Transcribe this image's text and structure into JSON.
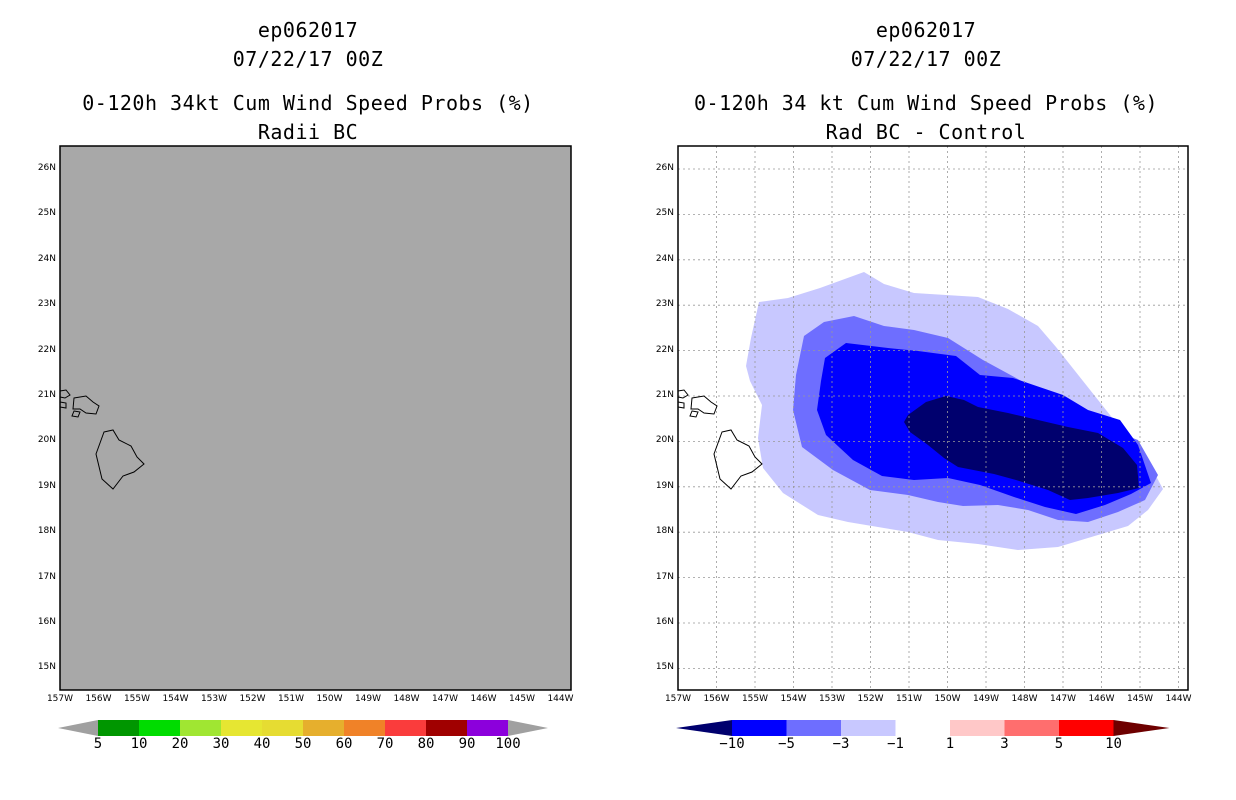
{
  "left_panel": {
    "storm_id": "ep062017",
    "datetime": "07/22/17 00Z",
    "title": "0-120h 34kt Cum Wind Speed Probs (%)",
    "subtitle": "Radii BC",
    "fill_color": "#a8a8a8",
    "colorbar": {
      "labels": [
        "5",
        "10",
        "20",
        "30",
        "40",
        "50",
        "60",
        "70",
        "80",
        "90",
        "100"
      ],
      "colors": [
        "#a0a0a0",
        "#009600",
        "#00dc00",
        "#a0e632",
        "#e6e632",
        "#e6dc32",
        "#e6af2d",
        "#f08228",
        "#fa3c3c",
        "#a00000",
        "#8c00dc",
        "#a0a0a0"
      ]
    }
  },
  "right_panel": {
    "storm_id": "ep062017",
    "datetime": "07/22/17 00Z",
    "title": "0-120h 34 kt Cum Wind Speed Probs (%)",
    "subtitle": "Rad BC - Control",
    "colorbar": {
      "labels": [
        "−10",
        "−5",
        "−3",
        "−1",
        "1",
        "3",
        "5",
        "10"
      ],
      "colors": [
        "#00006e",
        "#0000ff",
        "#6e6eff",
        "#c8c8ff",
        "#ffffff",
        "#ffc8c8",
        "#ff6e6e",
        "#ff0000",
        "#6e0000"
      ]
    },
    "contour_colors": {
      "gt_neg1": "#c8c8ff",
      "gt_neg3": "#6e6eff",
      "gt_neg5": "#0000ff",
      "gt_neg10": "#00006e"
    }
  },
  "axes": {
    "lat_labels": [
      "26N",
      "25N",
      "24N",
      "23N",
      "22N",
      "21N",
      "20N",
      "19N",
      "18N",
      "17N",
      "16N",
      "15N"
    ],
    "lat_values": [
      26,
      25,
      24,
      23,
      22,
      21,
      20,
      19,
      18,
      17,
      16,
      15
    ],
    "lon_labels": [
      "157W",
      "156W",
      "155W",
      "154W",
      "153W",
      "152W",
      "151W",
      "150W",
      "149W",
      "148W",
      "147W",
      "146W",
      "145W",
      "144W"
    ],
    "lon_values": [
      157,
      156,
      155,
      154,
      153,
      152,
      151,
      150,
      149,
      148,
      147,
      146,
      145,
      144
    ]
  }
}
